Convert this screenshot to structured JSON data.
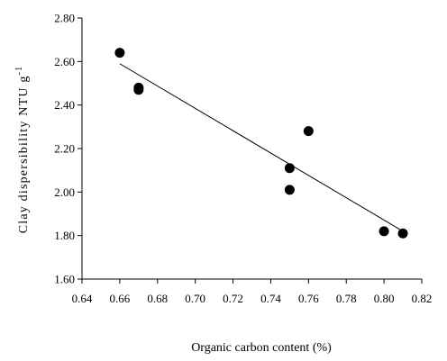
{
  "chart_data": {
    "type": "scatter",
    "xlabel": "Organic carbon content (%)",
    "ylabel": {
      "main": "Clay dispersibility NTU g",
      "superscript": "-1"
    },
    "xlim": [
      0.64,
      0.82
    ],
    "ylim": [
      1.6,
      2.8
    ],
    "x_ticks": [
      "0.64",
      "0.66",
      "0.68",
      "0.70",
      "0.72",
      "0.74",
      "0.76",
      "0.78",
      "0.80",
      "0.82"
    ],
    "y_ticks": [
      "1.60",
      "1.80",
      "2.00",
      "2.20",
      "2.40",
      "2.60",
      "2.80"
    ],
    "grid": false,
    "legend": "none",
    "series": [
      {
        "points": [
          {
            "x": 0.66,
            "y": 2.64
          },
          {
            "x": 0.67,
            "y": 2.48
          },
          {
            "x": 0.67,
            "y": 2.47
          },
          {
            "x": 0.75,
            "y": 2.11
          },
          {
            "x": 0.75,
            "y": 2.01
          },
          {
            "x": 0.76,
            "y": 2.28
          },
          {
            "x": 0.8,
            "y": 1.82
          },
          {
            "x": 0.81,
            "y": 1.81
          }
        ],
        "color": "#000000"
      }
    ],
    "trendline": {
      "x": [
        0.66,
        0.81
      ],
      "y": [
        2.59,
        1.82
      ],
      "color": "#000000"
    }
  }
}
